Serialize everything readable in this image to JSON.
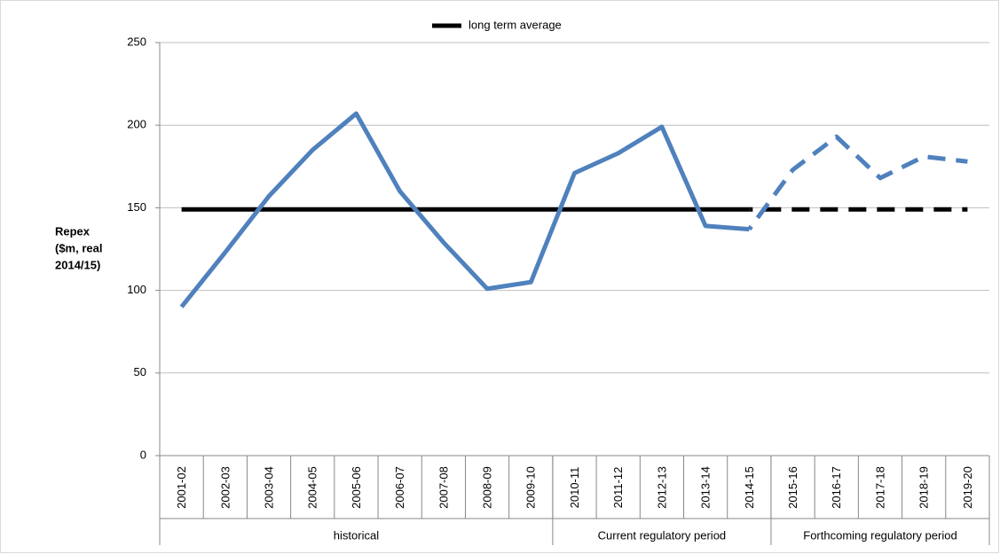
{
  "chart_data": {
    "type": "line",
    "legend": "top",
    "ylabel": [
      "Repex",
      "($m, real",
      "2014/15)"
    ],
    "categories": [
      "2001-02",
      "2002-03",
      "2003-04",
      "2004-05",
      "2005-06",
      "2006-07",
      "2007-08",
      "2008-09",
      "2009-10",
      "2010-11",
      "2011-12",
      "2012-13",
      "2013-14",
      "2014-15",
      "2015-16",
      "2016-17",
      "2017-18",
      "2018-19",
      "2019-20"
    ],
    "groups": [
      {
        "label": "historical",
        "span": 9
      },
      {
        "label": "Current regulatory period",
        "span": 5
      },
      {
        "label": "Forthcoming regulatory period",
        "span": 5
      }
    ],
    "series": [
      {
        "name": "long term average",
        "color": "#000000",
        "line_style": "solid",
        "values": [
          149,
          149,
          149,
          149,
          149,
          149,
          149,
          149,
          149,
          149,
          149,
          149,
          149,
          149,
          null,
          null,
          null,
          null,
          null
        ]
      },
      {
        "color": "#000000",
        "line_style": "dashed",
        "values": [
          null,
          null,
          null,
          null,
          null,
          null,
          null,
          null,
          null,
          null,
          null,
          null,
          null,
          149,
          149,
          149,
          149,
          149,
          149
        ]
      },
      {
        "color": "#4f81bd",
        "line_style": "solid",
        "values": [
          90,
          123,
          157,
          185,
          207,
          160,
          129,
          101,
          105,
          171,
          183,
          199,
          139,
          137,
          null,
          null,
          null,
          null,
          null
        ]
      },
      {
        "color": "#4f81bd",
        "line_style": "dashed",
        "values": [
          null,
          null,
          null,
          null,
          null,
          null,
          null,
          null,
          null,
          null,
          null,
          null,
          null,
          137,
          173,
          193,
          168,
          181,
          178
        ]
      }
    ],
    "ylim": [
      0,
      250
    ],
    "yticks": [
      0,
      50,
      100,
      150,
      200,
      250
    ],
    "grid": true
  }
}
